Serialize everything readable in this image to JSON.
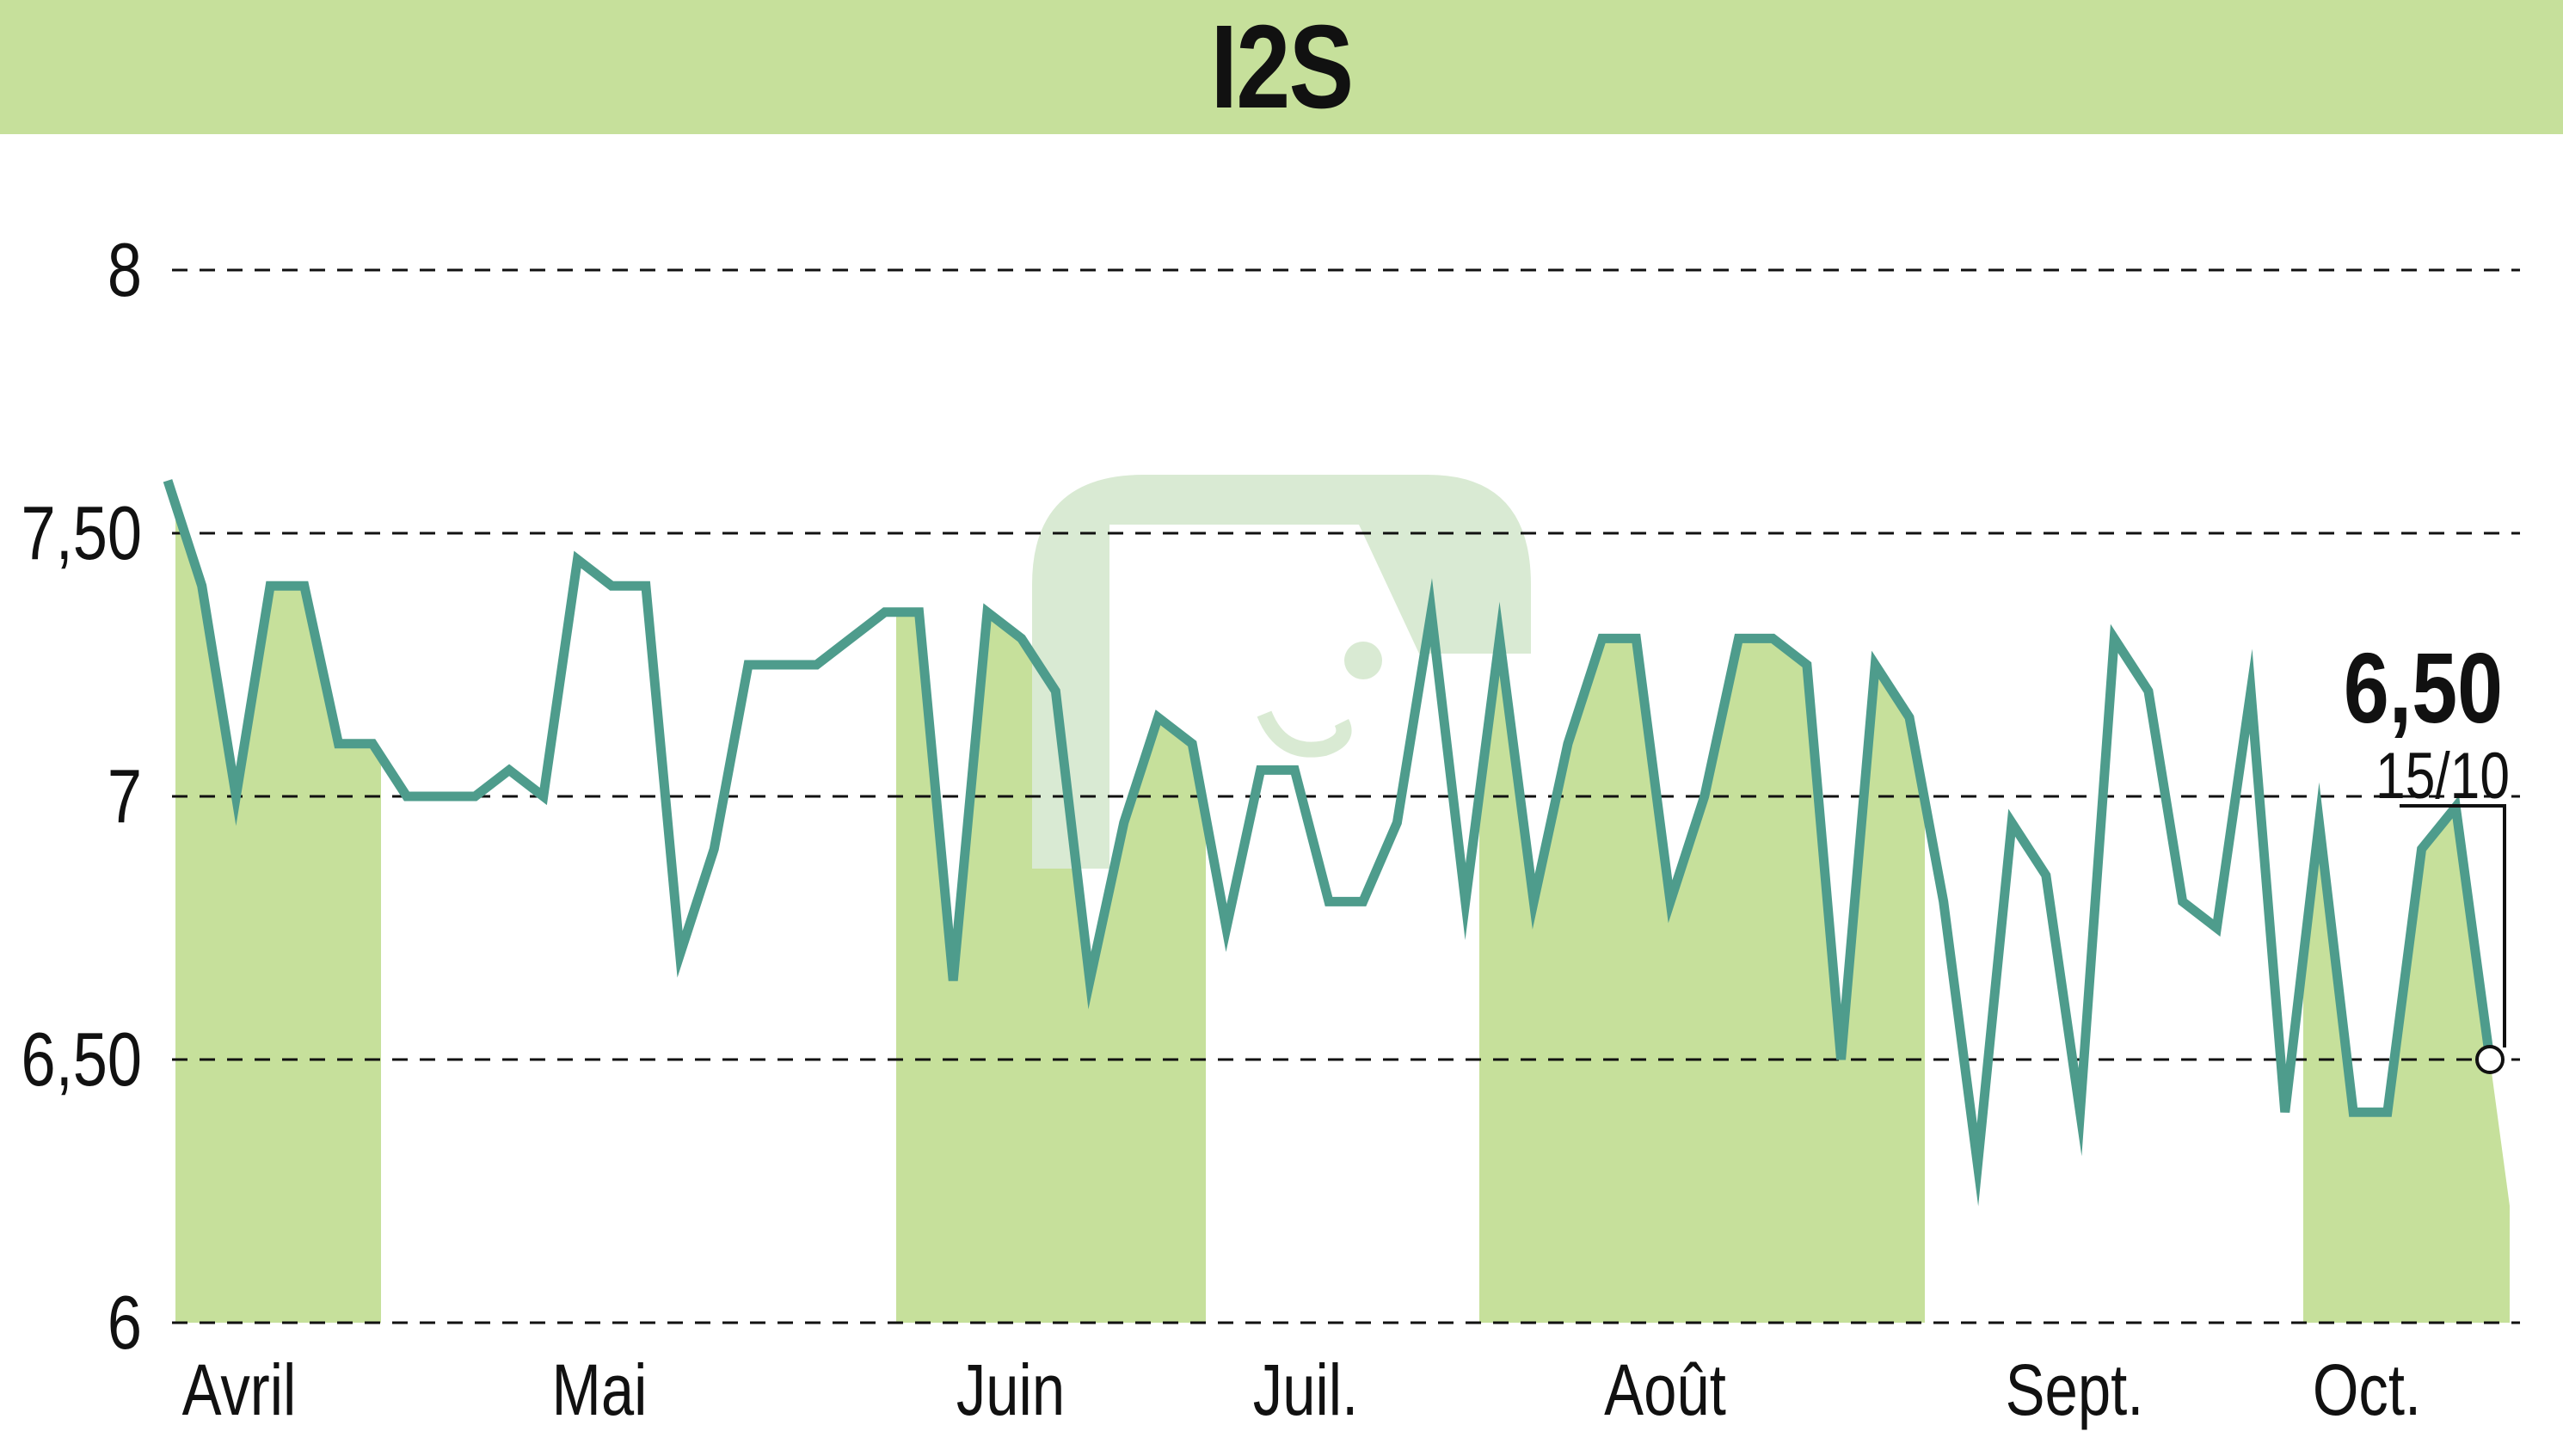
{
  "header": {
    "title": "I2S",
    "background": "#c6e09b"
  },
  "colors": {
    "line": "#4e9c8c",
    "fill": "#c6e09b",
    "grid": "#111111",
    "watermark": "#d9ead3"
  },
  "chart_data": {
    "type": "area",
    "title": "I2S",
    "xlabel": "",
    "ylabel": "",
    "ylim": [
      6,
      8
    ],
    "yticks": [
      {
        "value": 6,
        "label": "6"
      },
      {
        "value": 6.5,
        "label": "6,50"
      },
      {
        "value": 7,
        "label": "7"
      },
      {
        "value": 7.5,
        "label": "7,50"
      },
      {
        "value": 8,
        "label": "8"
      }
    ],
    "month_labels": [
      "Avril",
      "Mai",
      "Juin",
      "Juil.",
      "Août",
      "Sept.",
      "Oct."
    ],
    "shaded_months": [
      "Avril",
      "Juin",
      "Août",
      "Oct."
    ],
    "grid": true,
    "series": [
      {
        "values": [
          7.6,
          7.4,
          7.0,
          7.4,
          7.4,
          7.1,
          7.1,
          7.0,
          7.0,
          7.0,
          7.05,
          7.0,
          7.45,
          7.4,
          7.4,
          6.7,
          6.9,
          7.25,
          7.25,
          7.25,
          7.3,
          7.35,
          7.35,
          6.65,
          7.35,
          7.3,
          7.2,
          6.65,
          6.95,
          7.15,
          7.1,
          6.75,
          7.05,
          7.05,
          6.8,
          6.8,
          6.95,
          7.35,
          6.8,
          7.3,
          6.8,
          7.1,
          7.3,
          7.3,
          6.8,
          7.0,
          7.3,
          7.3,
          7.25,
          6.5,
          7.25,
          7.15,
          6.8,
          6.3,
          6.95,
          6.85,
          6.4,
          7.3,
          7.2,
          6.8,
          6.75,
          7.2,
          6.4,
          6.95,
          6.4,
          6.4,
          6.9,
          6.98,
          6.5
        ]
      }
    ],
    "last_value": {
      "value": 6.5,
      "label": "6,50",
      "date": "15/10"
    }
  }
}
